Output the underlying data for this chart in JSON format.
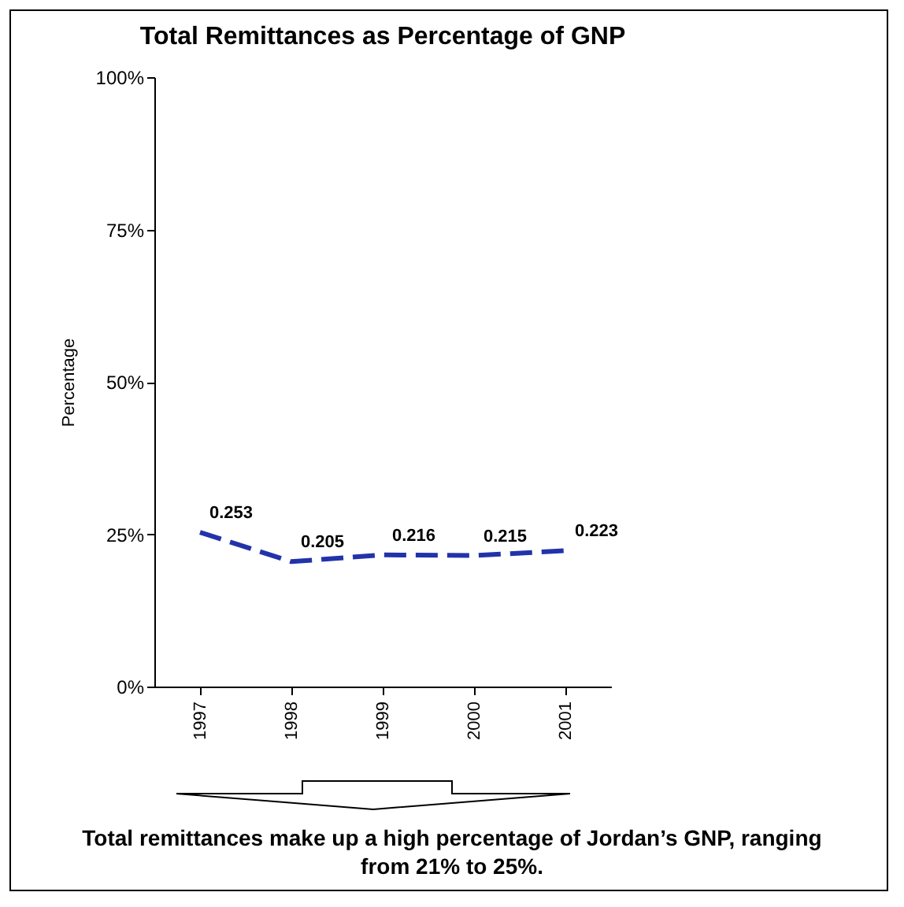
{
  "chart_data": {
    "type": "line",
    "title": "Total Remittances as Percentage of GNP",
    "ylabel": "Percentage",
    "categories": [
      "1997",
      "1998",
      "1999",
      "2000",
      "2001"
    ],
    "series": [
      {
        "color": "#2233aa",
        "values": [
          0.253,
          0.205,
          0.216,
          0.215,
          0.223
        ]
      }
    ],
    "ylim": [
      0,
      1
    ],
    "yticks": [
      {
        "value": 0,
        "label": "0%"
      },
      {
        "value": 0.25,
        "label": "25%"
      },
      {
        "value": 0.5,
        "label": "50%"
      },
      {
        "value": 0.75,
        "label": "75%"
      },
      {
        "value": 1,
        "label": "100%"
      }
    ],
    "grid": false,
    "legend": false,
    "marker": "none",
    "line_style": "dashed",
    "data_labels": true,
    "annotations": [
      "Total remittances make up a high percentage of Jordan’s GNP, ranging from 21% to 25%."
    ]
  }
}
